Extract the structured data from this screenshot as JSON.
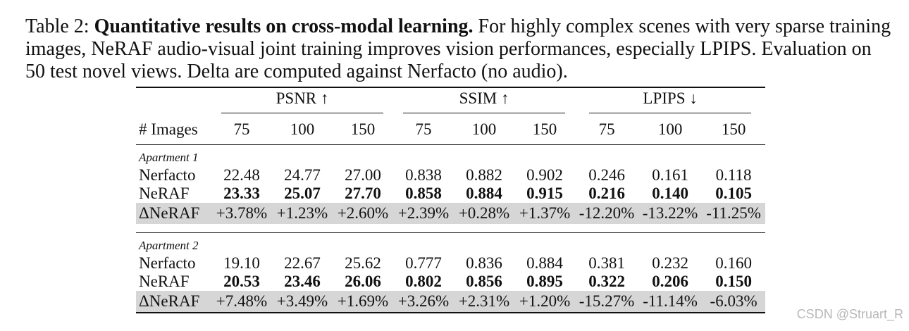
{
  "caption": {
    "lead": "Table 2: ",
    "bold": "Quantitative results on cross-modal learning.",
    "rest": " For highly complex scenes with very sparse training images, NeRAF audio-visual joint training improves vision performances, especially LPIPS. Evaluation on 50 test novel views. Delta are computed against Nerfacto (no audio)."
  },
  "table": {
    "groups": [
      "PSNR ↑",
      "SSIM ↑",
      "LPIPS ↓"
    ],
    "row_header": "# Images",
    "columns": [
      "75",
      "100",
      "150",
      "75",
      "100",
      "150",
      "75",
      "100",
      "150"
    ],
    "sections": [
      {
        "label": "Apartment 1",
        "rows": [
          {
            "name": "Nerfacto",
            "values": [
              "22.48",
              "24.77",
              "27.00",
              "0.838",
              "0.882",
              "0.902",
              "0.246",
              "0.161",
              "0.118"
            ]
          },
          {
            "name": "NeRAF",
            "values": [
              "23.33",
              "25.07",
              "27.70",
              "0.858",
              "0.884",
              "0.915",
              "0.216",
              "0.140",
              "0.105"
            ]
          },
          {
            "name": "ΔNeRAF",
            "values": [
              "+3.78%",
              "+1.23%",
              "+2.60%",
              "+2.39%",
              "+0.28%",
              "+1.37%",
              "-12.20%",
              "-13.22%",
              "-11.25%"
            ]
          }
        ]
      },
      {
        "label": "Apartment 2",
        "rows": [
          {
            "name": "Nerfacto",
            "values": [
              "19.10",
              "22.67",
              "25.62",
              "0.777",
              "0.836",
              "0.884",
              "0.381",
              "0.232",
              "0.160"
            ]
          },
          {
            "name": "NeRAF",
            "values": [
              "20.53",
              "23.46",
              "26.06",
              "0.802",
              "0.856",
              "0.895",
              "0.322",
              "0.206",
              "0.150"
            ]
          },
          {
            "name": "ΔNeRAF",
            "values": [
              "+7.48%",
              "+3.49%",
              "+1.69%",
              "+3.26%",
              "+2.31%",
              "+1.20%",
              "-15.27%",
              "-11.14%",
              "-6.03%"
            ]
          }
        ]
      }
    ]
  },
  "watermark": "CSDN @Struart_R"
}
